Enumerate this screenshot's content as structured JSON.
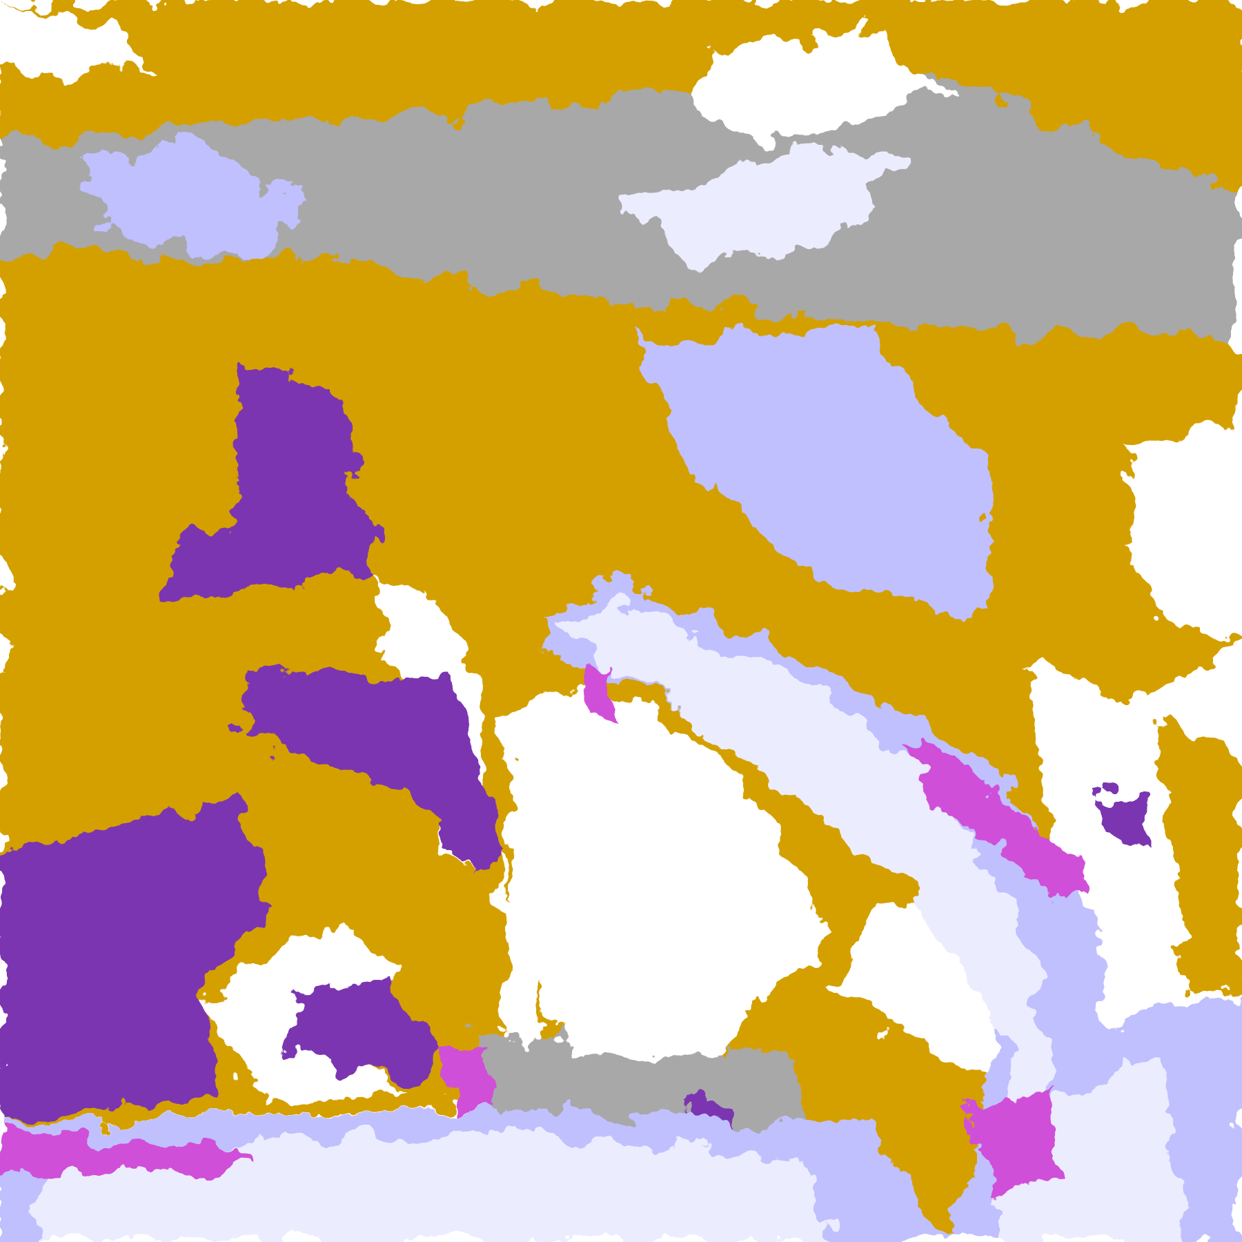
{
  "map": {
    "palette": {
      "background": "#ffffff",
      "gold": "#d4a000",
      "purple": "#7b35b0",
      "magenta": "#d050d8",
      "lavender": "#ececff",
      "periwinkle": "#c0c0ff",
      "blue": "#a0a0f0",
      "gray": "#a8a8a8"
    }
  }
}
